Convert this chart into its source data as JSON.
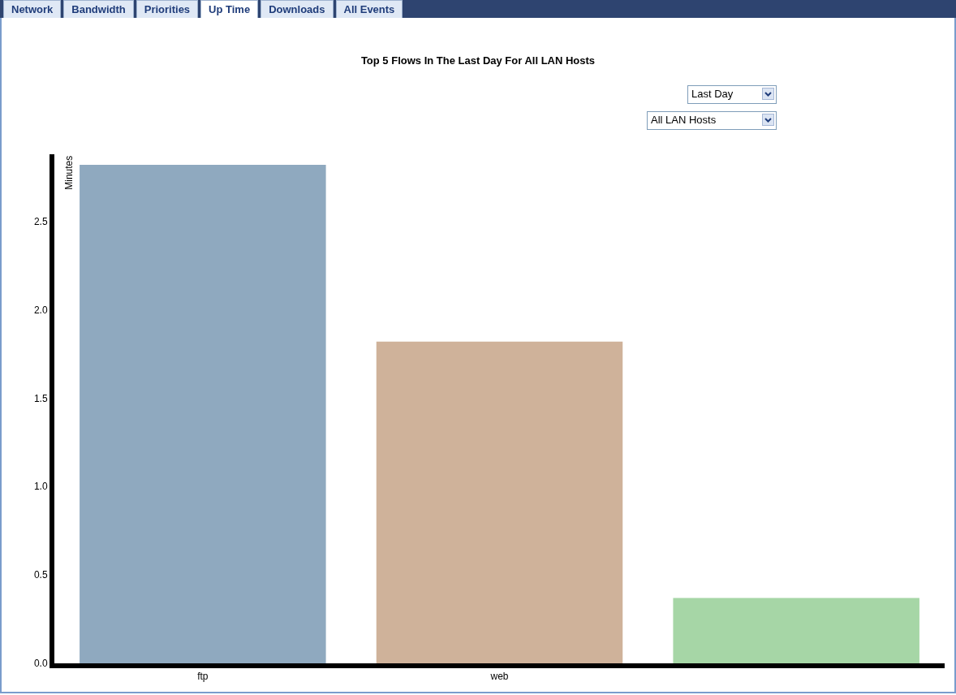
{
  "chart_data": {
    "type": "bar",
    "title": "Top 5 Flows In The Last Day For All LAN Hosts",
    "ylabel": "Minutes",
    "categories": [
      "ftp",
      "web",
      null
    ],
    "values": [
      2.82,
      1.82,
      0.37
    ],
    "colors": [
      "#8fa9bf",
      "#cfb29a",
      "#a6d6a6"
    ],
    "ylim": [
      0,
      2.88
    ],
    "yticks": [
      {
        "value": 0,
        "label": "0.0"
      },
      {
        "value": 0.5,
        "label": "0.5"
      },
      {
        "value": 1,
        "label": "1.0"
      },
      {
        "value": 1.5,
        "label": "1.5"
      },
      {
        "value": 2,
        "label": "2.0"
      },
      {
        "value": 2.5,
        "label": "2.5"
      }
    ],
    "grid": false,
    "annotations": [
      "Network",
      "Bandwidth",
      "Priorities",
      "Up Time",
      "Downloads",
      "All Events",
      "Last Day",
      "All LAN Hosts"
    ]
  }
}
